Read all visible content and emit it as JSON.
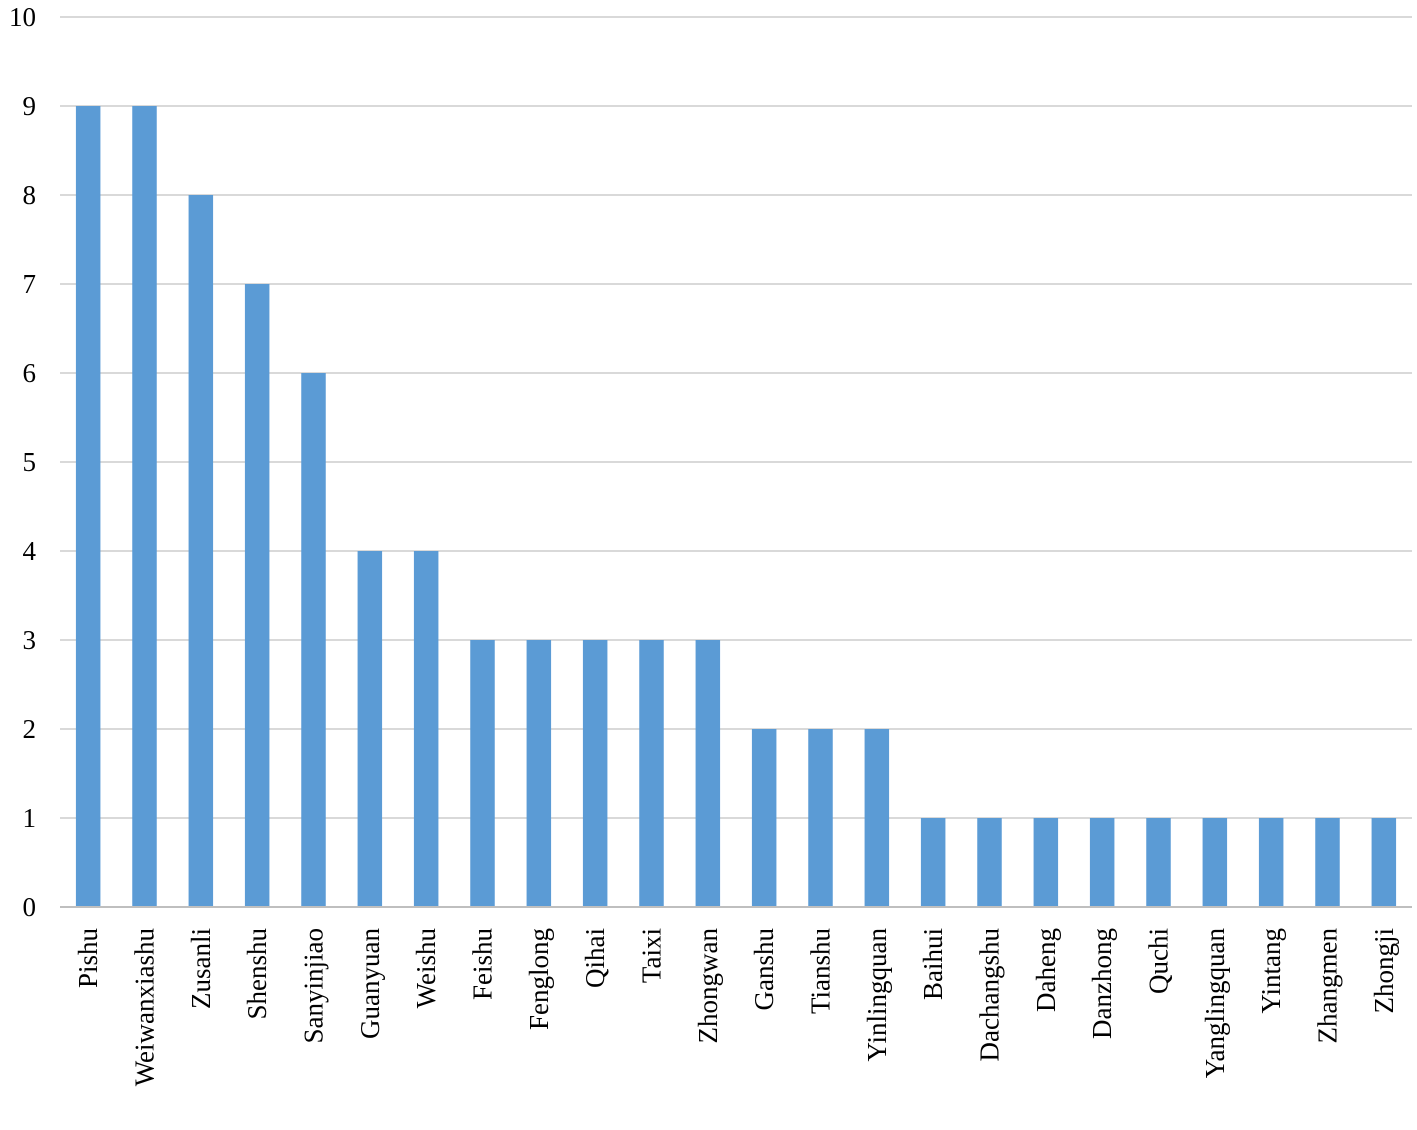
{
  "chart_data": {
    "type": "bar",
    "title": "",
    "xlabel": "",
    "ylabel": "",
    "ylim": [
      0,
      10
    ],
    "yticks": [
      0,
      1,
      2,
      3,
      4,
      5,
      6,
      7,
      8,
      9,
      10
    ],
    "grid": true,
    "legend": "none",
    "bar_color": "#5b9bd5",
    "grid_color": "#d9d9d9",
    "categories": [
      "Pishu",
      "Weiwanxiashu",
      "Zusanli",
      "Shenshu",
      "Sanyinjiao",
      "Guanyuan",
      "Weishu",
      "Feishu",
      "Fenglong",
      "Qihai",
      "Taixi",
      "Zhongwan",
      "Ganshu",
      "Tianshu",
      "Yinlingquan",
      "Baihui",
      "Dachangshu",
      "Daheng",
      "Danzhong",
      "Quchi",
      "Yanglingquan",
      "Yintang",
      "Zhangmen",
      "Zhongji"
    ],
    "values": [
      9,
      9,
      8,
      7,
      6,
      4,
      4,
      3,
      3,
      3,
      3,
      3,
      2,
      2,
      2,
      1,
      1,
      1,
      1,
      1,
      1,
      1,
      1,
      1
    ]
  }
}
